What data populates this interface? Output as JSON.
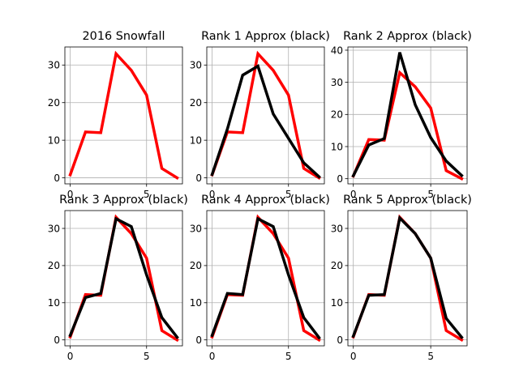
{
  "chart_data": [
    {
      "type": "line",
      "title": "2016 Snowfall",
      "x": [
        0,
        1,
        2,
        3,
        4,
        5,
        6,
        7
      ],
      "xticks": [
        "0",
        "5"
      ],
      "yticks": [
        "0",
        "10",
        "20",
        "30"
      ],
      "xlim": [
        -0.35,
        7.35
      ],
      "ylim": [
        -1.6,
        34.8
      ],
      "grid": true,
      "colors": {
        "original": "#ff0000",
        "approx": "#000000"
      },
      "series": [
        {
          "values": [
            0.8,
            12.2,
            12.0,
            33.0,
            28.6,
            22.0,
            2.5,
            0.0
          ]
        }
      ]
    },
    {
      "type": "line",
      "title": "Rank 1 Approx (black)",
      "x": [
        0,
        1,
        2,
        3,
        4,
        5,
        6,
        7
      ],
      "xticks": [
        "0",
        "5"
      ],
      "yticks": [
        "0",
        "10",
        "20",
        "30"
      ],
      "xlim": [
        -0.35,
        7.35
      ],
      "ylim": [
        -1.6,
        34.8
      ],
      "grid": true,
      "colors": {
        "original": "#ff0000",
        "approx": "#000000"
      },
      "series": [
        {
          "values": [
            0.8,
            12.2,
            12.0,
            33.0,
            28.6,
            22.0,
            2.5,
            0.0
          ]
        },
        {
          "values": [
            0.9,
            13.0,
            27.3,
            29.7,
            17.0,
            10.5,
            4.0,
            0.3
          ]
        }
      ]
    },
    {
      "type": "line",
      "title": "Rank 2 Approx (black)",
      "x": [
        0,
        1,
        2,
        3,
        4,
        5,
        6,
        7
      ],
      "xticks": [
        "0",
        "5"
      ],
      "yticks": [
        "0",
        "10",
        "20",
        "30",
        "40"
      ],
      "xlim": [
        -0.35,
        7.35
      ],
      "ylim": [
        -1.6,
        41.0
      ],
      "grid": true,
      "colors": {
        "original": "#ff0000",
        "approx": "#000000"
      },
      "series": [
        {
          "values": [
            0.8,
            12.2,
            12.0,
            33.0,
            28.6,
            22.0,
            2.5,
            0.0
          ]
        },
        {
          "values": [
            0.9,
            10.5,
            12.5,
            39.3,
            23.0,
            12.8,
            5.5,
            1.0
          ]
        }
      ]
    },
    {
      "type": "line",
      "title": "Rank 3 Approx (black)",
      "x": [
        0,
        1,
        2,
        3,
        4,
        5,
        6,
        7
      ],
      "xticks": [
        "0",
        "5"
      ],
      "yticks": [
        "0",
        "10",
        "20",
        "30"
      ],
      "xlim": [
        -0.35,
        7.35
      ],
      "ylim": [
        -1.6,
        34.8
      ],
      "grid": true,
      "colors": {
        "original": "#ff0000",
        "approx": "#000000"
      },
      "series": [
        {
          "values": [
            0.8,
            12.2,
            12.0,
            33.0,
            28.6,
            22.0,
            2.5,
            0.0
          ]
        },
        {
          "values": [
            1.2,
            11.4,
            12.5,
            32.6,
            30.5,
            17.5,
            6.0,
            0.7
          ]
        }
      ]
    },
    {
      "type": "line",
      "title": "Rank 4 Approx (black)",
      "x": [
        0,
        1,
        2,
        3,
        4,
        5,
        6,
        7
      ],
      "xticks": [
        "0",
        "5"
      ],
      "yticks": [
        "0",
        "10",
        "20",
        "30"
      ],
      "xlim": [
        -0.35,
        7.35
      ],
      "ylim": [
        -1.6,
        34.8
      ],
      "grid": true,
      "colors": {
        "original": "#ff0000",
        "approx": "#000000"
      },
      "series": [
        {
          "values": [
            0.8,
            12.2,
            12.0,
            33.0,
            28.6,
            22.0,
            2.5,
            0.0
          ]
        },
        {
          "values": [
            1.2,
            12.5,
            12.2,
            32.6,
            30.5,
            17.5,
            6.0,
            0.6
          ]
        }
      ]
    },
    {
      "type": "line",
      "title": "Rank 5 Approx (black)",
      "x": [
        0,
        1,
        2,
        3,
        4,
        5,
        6,
        7
      ],
      "xticks": [
        "0",
        "5"
      ],
      "yticks": [
        "0",
        "10",
        "20",
        "30"
      ],
      "xlim": [
        -0.35,
        7.35
      ],
      "ylim": [
        -1.6,
        34.8
      ],
      "grid": true,
      "colors": {
        "original": "#ff0000",
        "approx": "#000000"
      },
      "series": [
        {
          "values": [
            0.8,
            12.2,
            12.0,
            33.0,
            28.6,
            22.0,
            2.5,
            0.0
          ]
        },
        {
          "values": [
            1.0,
            12.0,
            12.2,
            32.8,
            28.6,
            22.0,
            5.8,
            0.7
          ]
        }
      ]
    }
  ]
}
